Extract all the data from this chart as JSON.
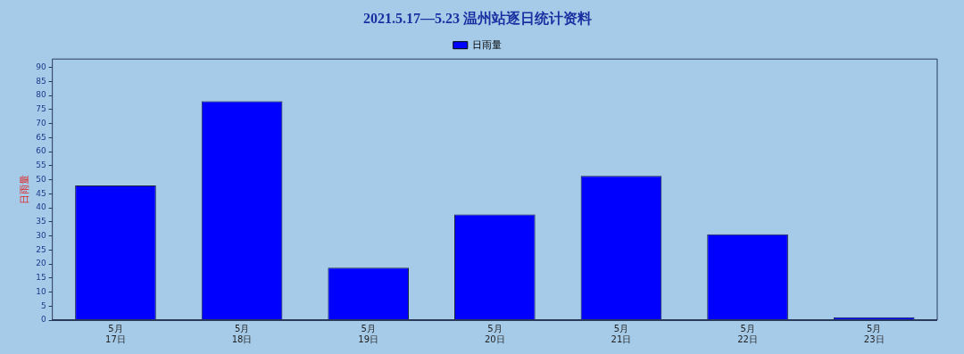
{
  "chart_data": {
    "type": "bar",
    "title": "2021.5.17—5.23 温州站逐日统计资料",
    "ylabel": "日雨量",
    "categories": [
      "5月\n17日",
      "5月\n18日",
      "5月\n19日",
      "5月\n20日",
      "5月\n21日",
      "5月\n22日",
      "5月\n23日"
    ],
    "series": [
      {
        "name": "日雨量",
        "color": "#0000ff",
        "values": [
          48,
          78,
          18.7,
          37.6,
          51.4,
          30.6,
          1
        ]
      }
    ],
    "ylim": [
      0,
      93
    ],
    "yticks": [
      0,
      5,
      10,
      15,
      20,
      25,
      30,
      35,
      40,
      45,
      50,
      55,
      60,
      65,
      70,
      75,
      80,
      85,
      90
    ],
    "grid": false,
    "legend": "top"
  }
}
